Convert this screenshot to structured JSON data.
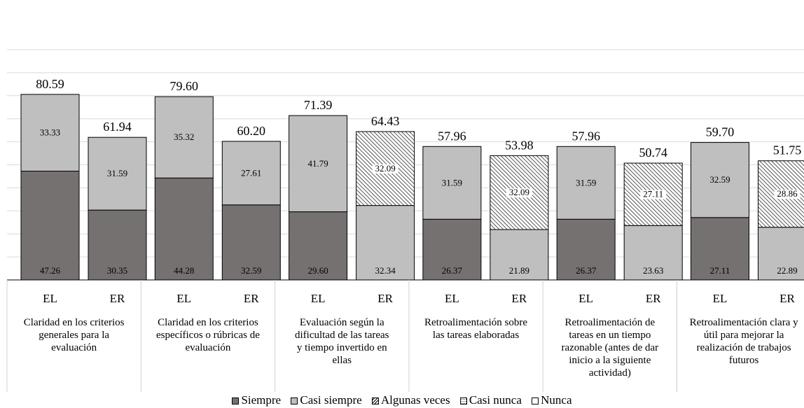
{
  "chart_data": {
    "type": "bar",
    "stacked": true,
    "ylim": [
      0,
      100
    ],
    "grid": true,
    "groups": [
      {
        "label": "Claridad en los criterios generales para la evaluación",
        "bars": [
          "EL",
          "ER"
        ]
      },
      {
        "label": "Claridad en los criterios específicos o rúbricas de evaluación",
        "bars": [
          "EL",
          "ER"
        ]
      },
      {
        "label": "Evaluación según la dificultad de las tareas y tiempo invertido en ellas",
        "bars": [
          "EL",
          "ER"
        ]
      },
      {
        "label": "Retroalimentación sobre las tareas elaboradas",
        "bars": [
          "EL",
          "ER"
        ]
      },
      {
        "label": "Retroalimentación de tareas en un tiempo razonable (antes de dar inicio a la siguiente actividad)",
        "bars": [
          "EL",
          "ER"
        ]
      },
      {
        "label": "Retroalimentación clara y útil para mejorar la realización de trabajos futuros",
        "bars": [
          "EL",
          "ER"
        ]
      }
    ],
    "bars": [
      {
        "group": 0,
        "label": "EL",
        "total": "80.59",
        "segments": [
          {
            "series": 0,
            "value": 47.26,
            "label": "47.26"
          },
          {
            "series": 1,
            "value": 33.33,
            "label": "33.33"
          }
        ]
      },
      {
        "group": 0,
        "label": "ER",
        "total": "61.94",
        "segments": [
          {
            "series": 0,
            "value": 30.35,
            "label": "30.35"
          },
          {
            "series": 1,
            "value": 31.59,
            "label": "31.59"
          }
        ]
      },
      {
        "group": 1,
        "label": "EL",
        "total": "79.60",
        "segments": [
          {
            "series": 0,
            "value": 44.28,
            "label": "44.28"
          },
          {
            "series": 1,
            "value": 35.32,
            "label": "35.32"
          }
        ]
      },
      {
        "group": 1,
        "label": "ER",
        "total": "60.20",
        "segments": [
          {
            "series": 0,
            "value": 32.59,
            "label": "32.59"
          },
          {
            "series": 1,
            "value": 27.61,
            "label": "27.61"
          }
        ]
      },
      {
        "group": 2,
        "label": "EL",
        "total": "71.39",
        "segments": [
          {
            "series": 0,
            "value": 29.6,
            "label": "29.60"
          },
          {
            "series": 1,
            "value": 41.79,
            "label": "41.79"
          }
        ]
      },
      {
        "group": 2,
        "label": "ER",
        "total": "64.43",
        "segments": [
          {
            "series": 1,
            "value": 32.34,
            "label": "32.34"
          },
          {
            "series": 2,
            "value": 32.09,
            "label": "32.09"
          }
        ]
      },
      {
        "group": 3,
        "label": "EL",
        "total": "57.96",
        "segments": [
          {
            "series": 0,
            "value": 26.37,
            "label": "26.37"
          },
          {
            "series": 1,
            "value": 31.59,
            "label": "31.59"
          }
        ]
      },
      {
        "group": 3,
        "label": "ER",
        "total": "53.98",
        "segments": [
          {
            "series": 1,
            "value": 21.89,
            "label": "21.89"
          },
          {
            "series": 2,
            "value": 32.09,
            "label": "32.09"
          }
        ]
      },
      {
        "group": 4,
        "label": "EL",
        "total": "57.96",
        "segments": [
          {
            "series": 0,
            "value": 26.37,
            "label": "26.37"
          },
          {
            "series": 1,
            "value": 31.59,
            "label": "31.59"
          }
        ]
      },
      {
        "group": 4,
        "label": "ER",
        "total": "50.74",
        "segments": [
          {
            "series": 1,
            "value": 23.63,
            "label": "23.63"
          },
          {
            "series": 2,
            "value": 27.11,
            "label": "27.11"
          }
        ]
      },
      {
        "group": 5,
        "label": "EL",
        "total": "59.70",
        "segments": [
          {
            "series": 0,
            "value": 27.11,
            "label": "27.11"
          },
          {
            "series": 1,
            "value": 32.59,
            "label": "32.59"
          }
        ]
      },
      {
        "group": 5,
        "label": "ER",
        "total": "51.75",
        "segments": [
          {
            "series": 1,
            "value": 22.89,
            "label": "22.89"
          },
          {
            "series": 2,
            "value": 28.86,
            "label": "28.86"
          }
        ]
      }
    ],
    "series": [
      {
        "name": "Siempre",
        "color": "#767171",
        "pattern": "solid"
      },
      {
        "name": "Casi siempre",
        "color": "#bfbfbf",
        "pattern": "solid"
      },
      {
        "name": "Algunas veces",
        "color": "#ffffff",
        "pattern": "diagonal-hatch"
      },
      {
        "name": "Casi nunca",
        "color": "#ffffff",
        "pattern": "dotted"
      },
      {
        "name": "Nunca",
        "color": "#ffffff",
        "pattern": "solid"
      }
    ],
    "legend_position": "bottom"
  }
}
